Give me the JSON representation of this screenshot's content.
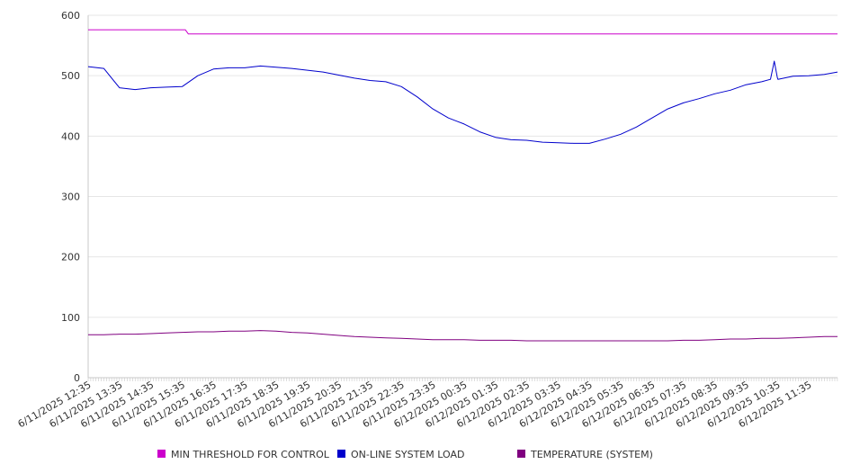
{
  "chart_data": {
    "type": "line",
    "title": "",
    "xlabel": "",
    "ylabel": "",
    "ylim": [
      0,
      600
    ],
    "y_ticks": [
      0,
      100,
      200,
      300,
      400,
      500,
      600
    ],
    "grid": "horizontal",
    "legend_position": "bottom",
    "x_tick_labels": [
      "6/11/2025 12:35",
      "6/11/2025 13:35",
      "6/11/2025 14:35",
      "6/11/2025 15:35",
      "6/11/2025 16:35",
      "6/11/2025 17:35",
      "6/11/2025 18:35",
      "6/11/2025 19:35",
      "6/11/2025 20:35",
      "6/11/2025 21:35",
      "6/11/2025 22:35",
      "6/11/2025 23:35",
      "6/12/2025 00:35",
      "6/12/2025 01:35",
      "6/12/2025 02:35",
      "6/12/2025 03:35",
      "6/12/2025 04:35",
      "6/12/2025 05:35",
      "6/12/2025 06:35",
      "6/12/2025 07:35",
      "6/12/2025 08:35",
      "6/12/2025 09:35",
      "6/12/2025 10:35",
      "6/12/2025 11:35"
    ],
    "x_hours": [
      0,
      0.5,
      1,
      1.5,
      2,
      2.5,
      3,
      3.5,
      4,
      4.5,
      5,
      5.5,
      6,
      6.5,
      7,
      7.5,
      8,
      8.5,
      9,
      9.5,
      10,
      10.5,
      11,
      11.5,
      12,
      12.5,
      13,
      13.5,
      14,
      14.5,
      15,
      15.5,
      16,
      16.5,
      17,
      17.5,
      18,
      18.5,
      19,
      19.5,
      20,
      20.5,
      21,
      21.5,
      22,
      22.5,
      23,
      23.5,
      23.92
    ],
    "series": [
      {
        "name": "MIN THRESHOLD FOR CONTROL",
        "color": "#cc00cc",
        "x": [
          0,
          3.1,
          3.2,
          23.92
        ],
        "values": [
          576,
          576,
          569,
          569
        ]
      },
      {
        "name": "ON-LINE SYSTEM LOAD",
        "color": "#0000cc",
        "values": [
          515,
          512,
          480,
          477,
          480,
          481,
          482,
          500,
          511,
          513,
          513,
          516,
          514,
          512,
          509,
          506,
          501,
          496,
          492,
          490,
          482,
          465,
          445,
          430,
          420,
          407,
          398,
          394,
          393,
          390,
          389,
          388,
          388,
          395,
          403,
          415,
          430,
          445,
          455,
          462,
          470,
          476,
          485,
          490,
          497,
          499,
          500,
          502,
          506
        ],
        "spike": {
          "x": 21.9,
          "value": 524
        }
      },
      {
        "name": "TEMPERATURE (SYSTEM)",
        "color": "#800080",
        "values": [
          71,
          71,
          72,
          72,
          73,
          74,
          75,
          76,
          76,
          77,
          77,
          78,
          77,
          75,
          74,
          72,
          70,
          68,
          67,
          66,
          65,
          64,
          63,
          63,
          63,
          62,
          62,
          62,
          61,
          61,
          61,
          61,
          61,
          61,
          61,
          61,
          61,
          61,
          62,
          62,
          63,
          64,
          64,
          65,
          65,
          66,
          67,
          68,
          68
        ]
      }
    ]
  }
}
